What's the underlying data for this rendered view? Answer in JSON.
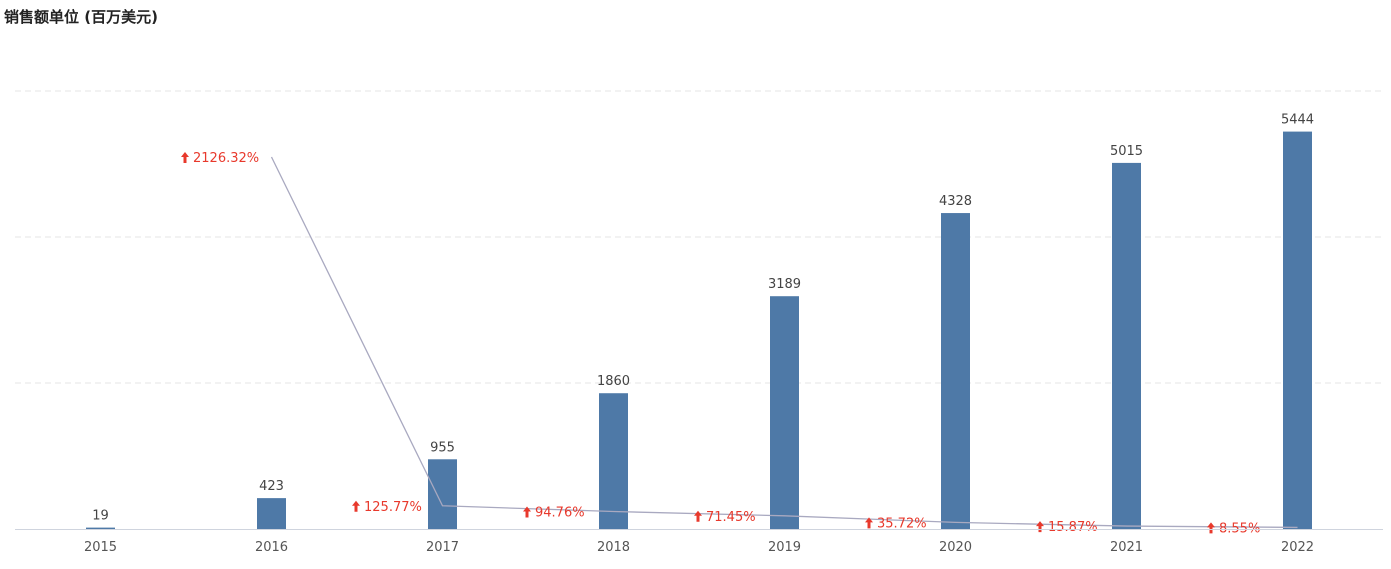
{
  "chart_data": {
    "type": "bar",
    "title": "销售额单位 (百万美元)",
    "categories": [
      "2015",
      "2016",
      "2017",
      "2018",
      "2019",
      "2020",
      "2021",
      "2022"
    ],
    "series": [
      {
        "values": [
          19,
          423,
          955,
          1860,
          3189,
          4328,
          5015,
          5444
        ]
      }
    ],
    "growth_line": {
      "values": [
        2126.32,
        125.77,
        94.76,
        71.45,
        35.72,
        15.87,
        8.55
      ],
      "labels": [
        "2126.32%",
        "125.77%",
        "94.76%",
        "71.45%",
        "35.72%",
        "15.87%",
        "8.55%"
      ],
      "direction": "up"
    },
    "ylim": [
      0,
      6000
    ],
    "grid": true,
    "colors": {
      "bar": "#4e79a7",
      "line": "#a9a9c0",
      "growth": "#e8392c",
      "grid": "#e6e6e6"
    }
  }
}
